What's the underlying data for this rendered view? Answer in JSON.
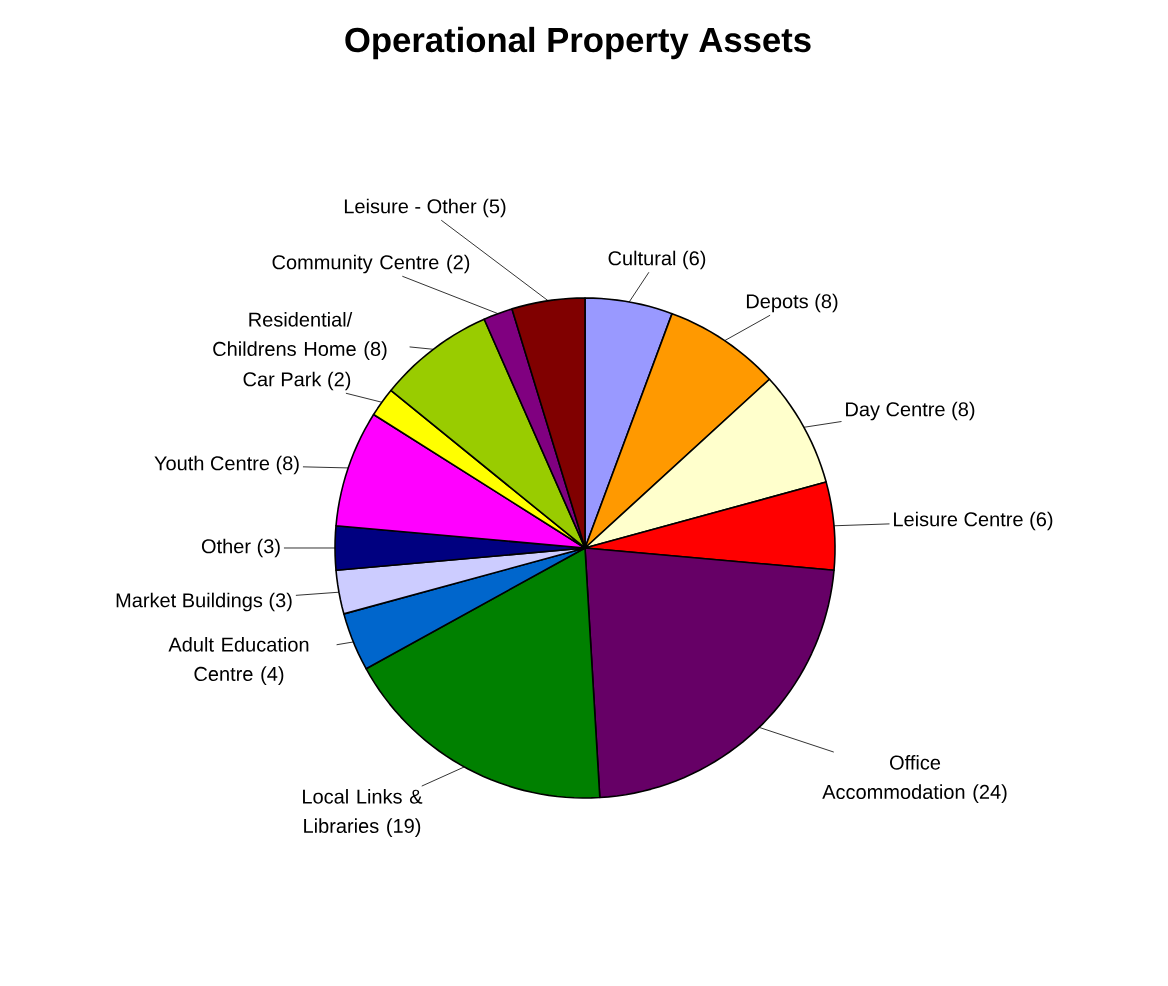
{
  "chart_data": {
    "type": "pie",
    "title": "Operational Property Assets",
    "categories": [
      "Cultural (6)",
      "Depots (8)",
      "Day Centre (8)",
      "Leisure Centre (6)",
      "Office Accommodation (24)",
      "Local Links & Libraries (19)",
      "Adult Education Centre (4)",
      "Market Buildings (3)",
      "Other (3)",
      "Youth Centre (8)",
      "Car Park (2)",
      "Residential/ Childrens Home (8)",
      "Community Centre (2)",
      "Leisure - Other (5)"
    ],
    "values": [
      6,
      8,
      8,
      6,
      24,
      19,
      4,
      3,
      3,
      8,
      2,
      8,
      2,
      5
    ],
    "colors": [
      "#9999ff",
      "#ff9900",
      "#ffffcc",
      "#ff0000",
      "#660066",
      "#008000",
      "#0066cc",
      "#ccccff",
      "#000080",
      "#ff00ff",
      "#ffff00",
      "#99cc00",
      "#800080",
      "#800000"
    ]
  }
}
